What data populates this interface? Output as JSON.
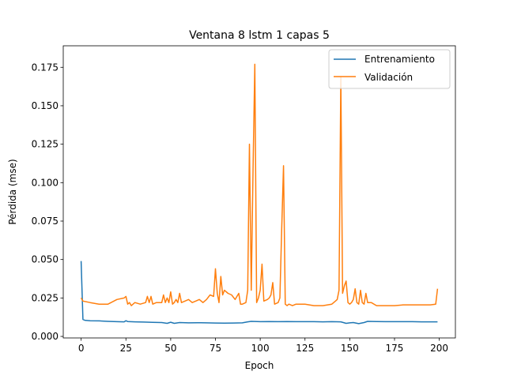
{
  "chart_data": {
    "type": "line",
    "title": "Ventana 8 lstm 1 capas 5",
    "xlabel": "Epoch",
    "ylabel": "Pérdida (mse)",
    "xlim": [
      -10,
      209
    ],
    "ylim": [
      -0.001,
      0.189
    ],
    "xticks": [
      0,
      25,
      50,
      75,
      100,
      125,
      150,
      175,
      200
    ],
    "yticks": [
      0.0,
      0.025,
      0.05,
      0.075,
      0.1,
      0.125,
      0.15,
      0.175
    ],
    "ytick_labels": [
      "0.000",
      "0.025",
      "0.050",
      "0.075",
      "0.100",
      "0.125",
      "0.150",
      "0.175"
    ],
    "grid": false,
    "legend_position": "top-right",
    "series": [
      {
        "name": "Entrenamiento",
        "color": "#1f77b4",
        "x": [
          0,
          1,
          2,
          5,
          10,
          15,
          20,
          24,
          25,
          26,
          30,
          35,
          40,
          45,
          48,
          50,
          52,
          55,
          60,
          65,
          70,
          75,
          80,
          85,
          90,
          93,
          95,
          100,
          105,
          110,
          115,
          120,
          125,
          130,
          135,
          140,
          145,
          148,
          150,
          152,
          155,
          158,
          160,
          165,
          170,
          175,
          180,
          185,
          190,
          195,
          199
        ],
        "values": [
          0.049,
          0.011,
          0.0105,
          0.0102,
          0.0101,
          0.0098,
          0.0096,
          0.0095,
          0.0102,
          0.0097,
          0.0095,
          0.0093,
          0.0091,
          0.009,
          0.0085,
          0.0092,
          0.0085,
          0.009,
          0.0088,
          0.0089,
          0.0088,
          0.0087,
          0.0086,
          0.0087,
          0.0088,
          0.0095,
          0.0098,
          0.0096,
          0.0097,
          0.0096,
          0.0097,
          0.0096,
          0.0096,
          0.0096,
          0.0095,
          0.0096,
          0.0095,
          0.0085,
          0.0088,
          0.009,
          0.0083,
          0.009,
          0.0098,
          0.0097,
          0.0096,
          0.0096,
          0.0096,
          0.0096,
          0.0095,
          0.0095,
          0.0095
        ]
      },
      {
        "name": "Validación",
        "color": "#ff7f0e",
        "x": [
          0,
          1,
          5,
          10,
          15,
          20,
          24,
          25,
          26,
          27,
          28,
          30,
          33,
          36,
          37,
          38,
          39,
          40,
          42,
          45,
          46,
          47,
          48,
          49,
          50,
          51,
          52,
          53,
          54,
          55,
          56,
          58,
          60,
          62,
          64,
          66,
          68,
          70,
          72,
          74,
          75,
          76,
          77,
          78,
          79,
          80,
          82,
          84,
          86,
          88,
          89,
          90,
          92,
          93,
          94,
          95,
          96,
          97,
          98,
          99,
          100,
          101,
          102,
          104,
          105,
          106,
          107,
          108,
          110,
          111,
          112,
          113,
          114,
          115,
          116,
          118,
          120,
          125,
          130,
          135,
          140,
          142,
          143,
          144,
          145,
          146,
          147,
          148,
          149,
          150,
          151,
          152,
          153,
          154,
          155,
          156,
          157,
          158,
          159,
          160,
          162,
          165,
          170,
          175,
          180,
          185,
          190,
          195,
          198,
          199
        ],
        "values": [
          0.025,
          0.023,
          0.022,
          0.021,
          0.021,
          0.024,
          0.025,
          0.026,
          0.021,
          0.022,
          0.02,
          0.022,
          0.021,
          0.022,
          0.026,
          0.022,
          0.026,
          0.021,
          0.022,
          0.022,
          0.027,
          0.022,
          0.025,
          0.022,
          0.029,
          0.021,
          0.022,
          0.024,
          0.022,
          0.028,
          0.022,
          0.023,
          0.024,
          0.022,
          0.023,
          0.024,
          0.022,
          0.024,
          0.027,
          0.026,
          0.044,
          0.028,
          0.022,
          0.039,
          0.027,
          0.03,
          0.028,
          0.027,
          0.024,
          0.028,
          0.021,
          0.021,
          0.022,
          0.03,
          0.125,
          0.03,
          0.11,
          0.177,
          0.022,
          0.025,
          0.03,
          0.047,
          0.023,
          0.024,
          0.025,
          0.027,
          0.035,
          0.021,
          0.022,
          0.025,
          0.07,
          0.111,
          0.021,
          0.02,
          0.021,
          0.02,
          0.021,
          0.021,
          0.02,
          0.02,
          0.021,
          0.023,
          0.024,
          0.03,
          0.169,
          0.028,
          0.033,
          0.036,
          0.022,
          0.021,
          0.022,
          0.024,
          0.031,
          0.022,
          0.021,
          0.03,
          0.022,
          0.021,
          0.028,
          0.022,
          0.022,
          0.02,
          0.02,
          0.02,
          0.0205,
          0.0205,
          0.0205,
          0.0205,
          0.021,
          0.031
        ]
      }
    ]
  }
}
